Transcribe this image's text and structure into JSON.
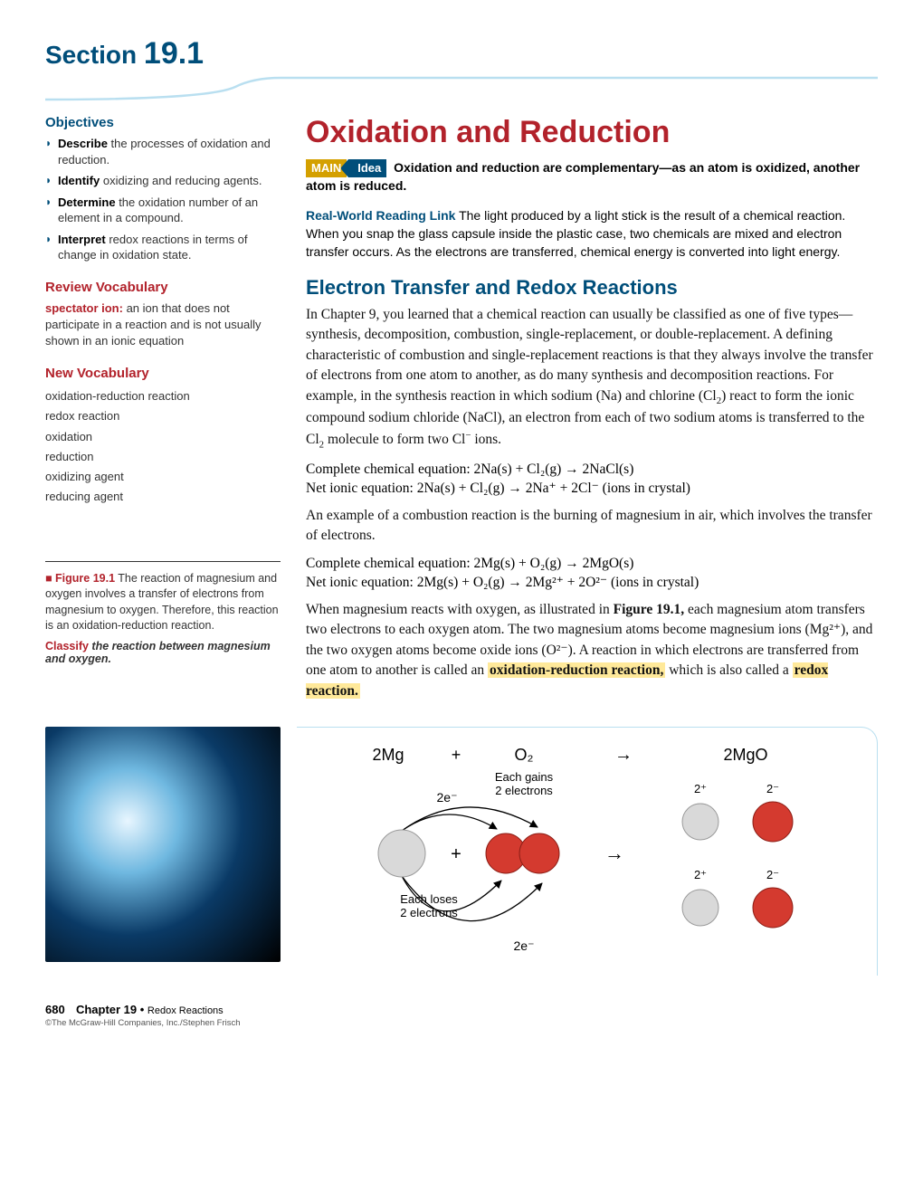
{
  "header": {
    "section_word": "Section",
    "section_number": "19.1"
  },
  "sidebar": {
    "objectives_title": "Objectives",
    "objectives": [
      {
        "bold": "Describe",
        "rest": " the processes of oxidation and reduction."
      },
      {
        "bold": "Identify",
        "rest": " oxidizing and reducing agents."
      },
      {
        "bold": "Determine",
        "rest": " the oxidation number of an element in a compound."
      },
      {
        "bold": "Interpret",
        "rest": " redox reactions in terms of change in oxidation state."
      }
    ],
    "review_title": "Review Vocabulary",
    "review_term": "spectator ion:",
    "review_def": " an ion that does not participate in a reaction and is not usually shown in an ionic equation",
    "newvocab_title": "New Vocabulary",
    "newvocab": [
      "oxidation-reduction reaction",
      "redox reaction",
      "oxidation",
      "reduction",
      "oxidizing agent",
      "reducing agent"
    ],
    "fig_label": "Figure 19.1",
    "fig_text": " The reaction of magnesium and oxygen involves a transfer of electrons from magnesium to oxygen. Therefore, this reaction is an oxidation-reduction reaction.",
    "classify_word": "Classify",
    "classify_rest": " the reaction between magnesium and oxygen."
  },
  "main": {
    "title": "Oxidation and Reduction",
    "main_badge": "MAIN",
    "idea_badge": "Idea",
    "main_idea": " Oxidation and reduction are complementary—as an atom is oxidized, another atom is reduced.",
    "rwrl_lead": "Real-World Reading Link",
    "rwrl_text": "  The light produced by a light stick is the result of a chemical reaction. When you snap the glass capsule inside the plastic case, two chemicals are mixed and electron transfer occurs. As the electrons are transferred, chemical energy is converted into light energy.",
    "h2": "Electron Transfer and Redox Reactions",
    "p1_a": "In Chapter 9, you learned that a chemical reaction can usually be classified as one of five types—synthesis, decomposition, combustion, single-replacement, or double-replacement. A defining characteristic of combustion and single-replacement reactions is that they always involve the transfer of electrons from one atom to another, as do many synthesis and decomposition reactions. For example, in the synthesis reaction in which sodium (Na) and chlorine (Cl",
    "p1_b": ") react to form the ionic compound sodium chloride (NaCl), an electron from each of two sodium atoms is transferred to the Cl",
    "p1_c": " molecule to form two Cl",
    "p1_d": " ions.",
    "eq1_label": "Complete chemical equation:  ",
    "eq1": "2Na(s) + Cl₂(g) → 2NaCl(s)",
    "eq2_label": "Net ionic equation:  ",
    "eq2": "2Na(s) + Cl₂(g) → 2Na⁺ + 2Cl⁻ (ions in crystal)",
    "p2": "An example of a combustion reaction is the burning of magnesium in air, which involves the transfer of electrons.",
    "eq3_label": "Complete chemical equation:  ",
    "eq3": "2Mg(s) + O₂(g) → 2MgO(s)",
    "eq4_label": "Net ionic equation:  ",
    "eq4": "2Mg(s) + O₂(g) → 2Mg²⁺ + 2O²⁻ (ions in crystal)",
    "p3_a": "When magnesium reacts with oxygen, as illustrated in ",
    "p3_fig": "Figure 19.1,",
    "p3_b": " each magnesium atom transfers two electrons to each oxygen atom. The two magnesium atoms become magnesium ions (Mg²⁺), and the two oxygen atoms become oxide ions (O²⁻). A reaction in which electrons are transferred from one atom to another is called an ",
    "p3_hl1": "oxidation-reduction reaction,",
    "p3_c": " which is also called a ",
    "p3_hl2": "redox reaction."
  },
  "diagram": {
    "left": "2Mg",
    "plus": "+",
    "mid": "O₂",
    "arrow": "→",
    "right": "2MgO",
    "gain": "Each gains\n2 electrons",
    "lose": "Each loses\n2 electrons",
    "e1": "2e⁻",
    "e2": "2e⁻",
    "ch_pos": "2⁺",
    "ch_neg": "2⁻",
    "colors": {
      "mg": "#d9d9d9",
      "mg_stroke": "#9a9a9a",
      "o": "#d43a2f",
      "o_stroke": "#8e1f17",
      "text": "#000000",
      "arrow_stroke": "#000000"
    }
  },
  "footer": {
    "page": "680",
    "chapter": "Chapter 19 • ",
    "chapter_title": "Redox Reactions",
    "credit": "©The McGraw-Hill Companies, Inc./Stephen Frisch"
  }
}
